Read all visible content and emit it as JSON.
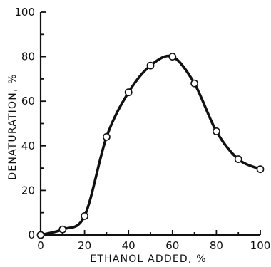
{
  "chart_data": {
    "type": "line",
    "xlabel": "ETHANOL ADDED, %",
    "ylabel": "DENATURATION, %",
    "xlim": [
      0,
      100
    ],
    "ylim": [
      0,
      100
    ],
    "x_ticks": [
      0,
      20,
      40,
      60,
      80,
      100
    ],
    "y_ticks": [
      0,
      20,
      40,
      60,
      80,
      100
    ],
    "x_tick_labels": [
      "0",
      "20",
      "40",
      "60",
      "80",
      "100"
    ],
    "y_tick_labels": [
      "0",
      "20",
      "40",
      "60",
      "80",
      "100"
    ],
    "grid": false,
    "line_color": "#111111",
    "marker": "open-circle",
    "series": [
      {
        "x": [
          0,
          10,
          20,
          30,
          40,
          50,
          60,
          70,
          80,
          90,
          100
        ],
        "y": [
          0,
          2.5,
          8.5,
          44,
          64,
          76,
          80,
          68,
          46.5,
          34,
          29.5
        ]
      }
    ]
  }
}
